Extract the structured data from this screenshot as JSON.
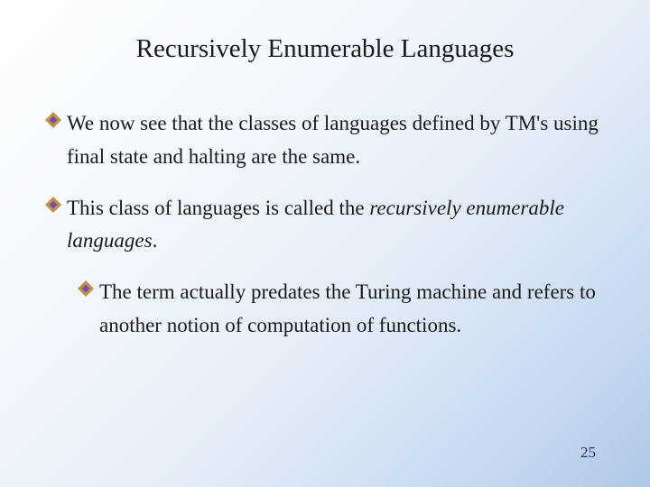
{
  "slide": {
    "title": "Recursively Enumerable Languages",
    "bullets": [
      {
        "level": 1,
        "pre": "We now see that the classes of languages defined by TM's using final state and halting are the same.",
        "italic": "",
        "post": ""
      },
      {
        "level": 1,
        "pre": "This class of languages is called the ",
        "italic": "recursively enumerable languages",
        "post": "."
      },
      {
        "level": 2,
        "pre": "The term actually predates the Turing machine and refers to another notion of computation of functions.",
        "italic": "",
        "post": ""
      }
    ],
    "page_number": "25"
  },
  "style": {
    "title_fontsize": "29px",
    "title_color": "#1a1a1a",
    "body_fontsize": "23px",
    "body_color": "#1a1a1a",
    "diamond_outer": "#c09046",
    "diamond_inner": "#7a4aa8",
    "diamond_size": "18",
    "pagenum_fontsize": "17px",
    "pagenum_color": "#2a2a6a"
  }
}
